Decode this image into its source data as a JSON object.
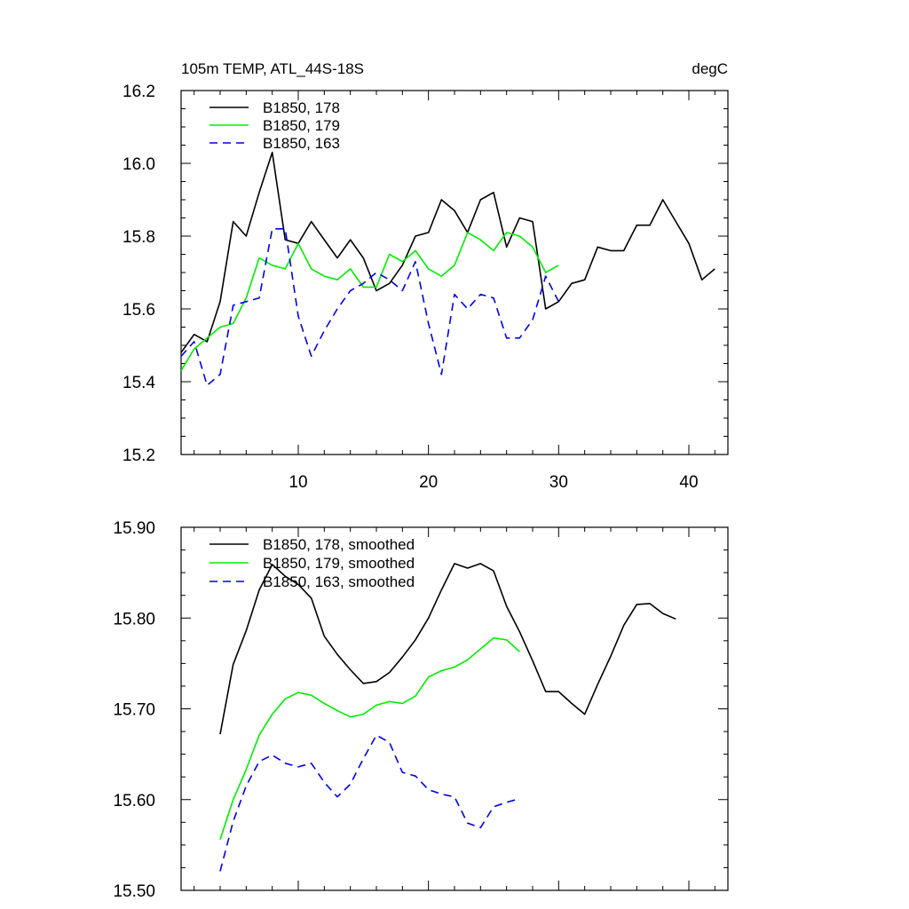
{
  "chart_data": [
    {
      "type": "line",
      "title": "105m TEMP, ATL_44S-18S",
      "units": "degC",
      "xlim": [
        1,
        43
      ],
      "ylim": [
        15.2,
        16.2
      ],
      "xticks": [
        10,
        20,
        30,
        40
      ],
      "yticks": [
        15.2,
        15.4,
        15.6,
        15.8,
        16.0,
        16.2
      ],
      "ytick_labels": [
        "15.2",
        "15.4",
        "15.6",
        "15.8",
        "16.0",
        "16.2"
      ],
      "legend_position": "top-left",
      "series": [
        {
          "name": "B1850, 178",
          "color": "#000000",
          "dash": "solid",
          "x": [
            1,
            2,
            3,
            4,
            5,
            6,
            7,
            8,
            9,
            10,
            11,
            12,
            13,
            14,
            15,
            16,
            17,
            18,
            19,
            20,
            21,
            22,
            23,
            24,
            25,
            26,
            27,
            28,
            29,
            30,
            31,
            32,
            33,
            34,
            35,
            36,
            37,
            38,
            39,
            40,
            41,
            42
          ],
          "values": [
            15.48,
            15.53,
            15.51,
            15.62,
            15.84,
            15.8,
            15.92,
            16.03,
            15.79,
            15.78,
            15.84,
            15.79,
            15.74,
            15.79,
            15.74,
            15.65,
            15.67,
            15.72,
            15.8,
            15.81,
            15.9,
            15.87,
            15.81,
            15.9,
            15.92,
            15.77,
            15.85,
            15.84,
            15.6,
            15.62,
            15.67,
            15.68,
            15.77,
            15.76,
            15.76,
            15.83,
            15.83,
            15.9,
            15.84,
            15.78,
            15.68,
            15.71
          ]
        },
        {
          "name": "B1850, 179",
          "color": "#00ee00",
          "dash": "solid",
          "x": [
            1,
            2,
            3,
            4,
            5,
            6,
            7,
            8,
            9,
            10,
            11,
            12,
            13,
            14,
            15,
            16,
            17,
            18,
            19,
            20,
            21,
            22,
            23,
            24,
            25,
            26,
            27,
            28,
            29,
            30
          ],
          "values": [
            15.43,
            15.49,
            15.52,
            15.55,
            15.56,
            15.63,
            15.74,
            15.72,
            15.71,
            15.78,
            15.71,
            15.69,
            15.68,
            15.71,
            15.66,
            15.66,
            15.75,
            15.73,
            15.76,
            15.71,
            15.69,
            15.72,
            15.81,
            15.79,
            15.76,
            15.81,
            15.8,
            15.77,
            15.7,
            15.72
          ]
        },
        {
          "name": "B1850, 163",
          "color": "#0000ee",
          "dash": "dashed",
          "x": [
            1,
            2,
            3,
            4,
            5,
            6,
            7,
            8,
            9,
            10,
            11,
            12,
            13,
            14,
            15,
            16,
            17,
            18,
            19,
            20,
            21,
            22,
            23,
            24,
            25,
            26,
            27,
            28,
            29,
            30
          ],
          "values": [
            15.47,
            15.51,
            15.39,
            15.42,
            15.61,
            15.62,
            15.63,
            15.82,
            15.82,
            15.58,
            15.47,
            15.54,
            15.6,
            15.65,
            15.67,
            15.7,
            15.68,
            15.65,
            15.73,
            15.56,
            15.42,
            15.64,
            15.6,
            15.64,
            15.63,
            15.52,
            15.52,
            15.57,
            15.69,
            15.62
          ]
        }
      ]
    },
    {
      "type": "line",
      "title": "",
      "xlim": [
        1,
        43
      ],
      "ylim": [
        15.5,
        15.9
      ],
      "xticks": [
        10,
        20,
        30,
        40
      ],
      "yticks": [
        15.5,
        15.6,
        15.7,
        15.8,
        15.9
      ],
      "ytick_labels": [
        "15.50",
        "15.60",
        "15.70",
        "15.80",
        "15.90"
      ],
      "legend_position": "top-left",
      "series": [
        {
          "name": "B1850, 178, smoothed",
          "color": "#000000",
          "dash": "solid",
          "x": [
            4,
            5,
            6,
            7,
            8,
            9,
            10,
            11,
            12,
            13,
            14,
            15,
            16,
            17,
            18,
            19,
            20,
            21,
            22,
            23,
            24,
            25,
            26,
            27,
            28,
            29,
            30,
            31,
            32,
            33,
            34,
            35,
            36,
            37,
            38,
            39
          ],
          "values": [
            15.672,
            15.749,
            15.786,
            15.831,
            15.859,
            15.846,
            15.837,
            15.822,
            15.78,
            15.76,
            15.743,
            15.728,
            15.73,
            15.74,
            15.757,
            15.776,
            15.8,
            15.831,
            15.86,
            15.855,
            15.86,
            15.852,
            15.813,
            15.785,
            15.753,
            15.719,
            15.719,
            15.706,
            15.694,
            15.727,
            15.758,
            15.792,
            15.815,
            15.816,
            15.805,
            15.799
          ]
        },
        {
          "name": "B1850, 179, smoothed",
          "color": "#00ee00",
          "dash": "solid",
          "x": [
            4,
            5,
            6,
            7,
            8,
            9,
            10,
            11,
            12,
            13,
            14,
            15,
            16,
            17,
            18,
            19,
            20,
            21,
            22,
            23,
            24,
            25,
            26,
            27
          ],
          "values": [
            15.556,
            15.6,
            15.633,
            15.671,
            15.694,
            15.711,
            15.718,
            15.715,
            15.706,
            15.698,
            15.691,
            15.694,
            15.704,
            15.708,
            15.706,
            15.714,
            15.735,
            15.742,
            15.746,
            15.754,
            15.766,
            15.778,
            15.776,
            15.763
          ]
        },
        {
          "name": "B1850, 163, smoothed",
          "color": "#0000ee",
          "dash": "dashed",
          "x": [
            4,
            5,
            6,
            7,
            8,
            9,
            10,
            11,
            12,
            13,
            14,
            15,
            16,
            17,
            18,
            19,
            20,
            21,
            22,
            23,
            24,
            25,
            26,
            27
          ],
          "values": [
            15.521,
            15.576,
            15.615,
            15.642,
            15.649,
            15.64,
            15.636,
            15.64,
            15.619,
            15.603,
            15.617,
            15.645,
            15.671,
            15.663,
            15.63,
            15.626,
            15.611,
            15.606,
            15.603,
            15.574,
            15.569,
            15.592,
            15.597,
            15.601
          ]
        }
      ]
    }
  ]
}
